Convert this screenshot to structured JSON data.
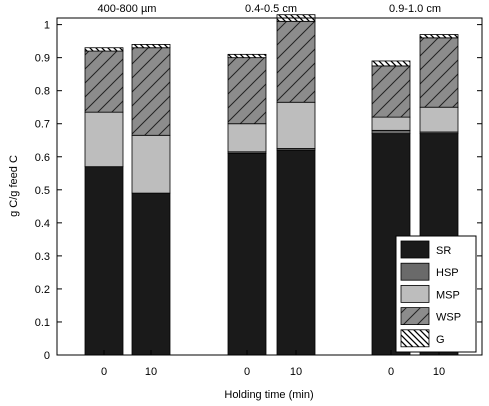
{
  "colors": {
    "SR": "#1a1a1a",
    "HSP": "#6a6a6a",
    "MSP": "#bdbdbd",
    "WSP": "#8c8c8c",
    "G": "#ffffff"
  },
  "chart_data": {
    "type": "bar",
    "stacked": true,
    "xlabel": "Holding time (min)",
    "ylabel": "g C/g feed C",
    "ylim": [
      0,
      1.02
    ],
    "yticks": [
      "0",
      "0.1",
      "0.2",
      "0.3",
      "0.4",
      "0.5",
      "0.6",
      "0.7",
      "0.8",
      "0.9",
      "1"
    ],
    "groups": [
      "400-800 µm",
      "0.4-0.5 cm",
      "0.9-1.0 cm"
    ],
    "categories": [
      "0",
      "10",
      "0",
      "10",
      "0",
      "10"
    ],
    "category_group": [
      0,
      0,
      1,
      1,
      2,
      2
    ],
    "series": [
      {
        "name": "SR",
        "values": [
          0.57,
          0.49,
          0.61,
          0.62,
          0.67,
          0.67
        ]
      },
      {
        "name": "HSP",
        "values": [
          0.0,
          0.0,
          0.005,
          0.005,
          0.01,
          0.005
        ]
      },
      {
        "name": "MSP",
        "values": [
          0.165,
          0.175,
          0.085,
          0.14,
          0.04,
          0.075
        ]
      },
      {
        "name": "WSP",
        "values": [
          0.185,
          0.265,
          0.2,
          0.245,
          0.155,
          0.21
        ]
      },
      {
        "name": "G",
        "values": [
          0.01,
          0.01,
          0.01,
          0.02,
          0.015,
          0.01
        ]
      }
    ],
    "legend": {
      "position": "bottom-right",
      "entries": [
        "SR",
        "HSP",
        "MSP",
        "WSP",
        "G"
      ]
    }
  }
}
